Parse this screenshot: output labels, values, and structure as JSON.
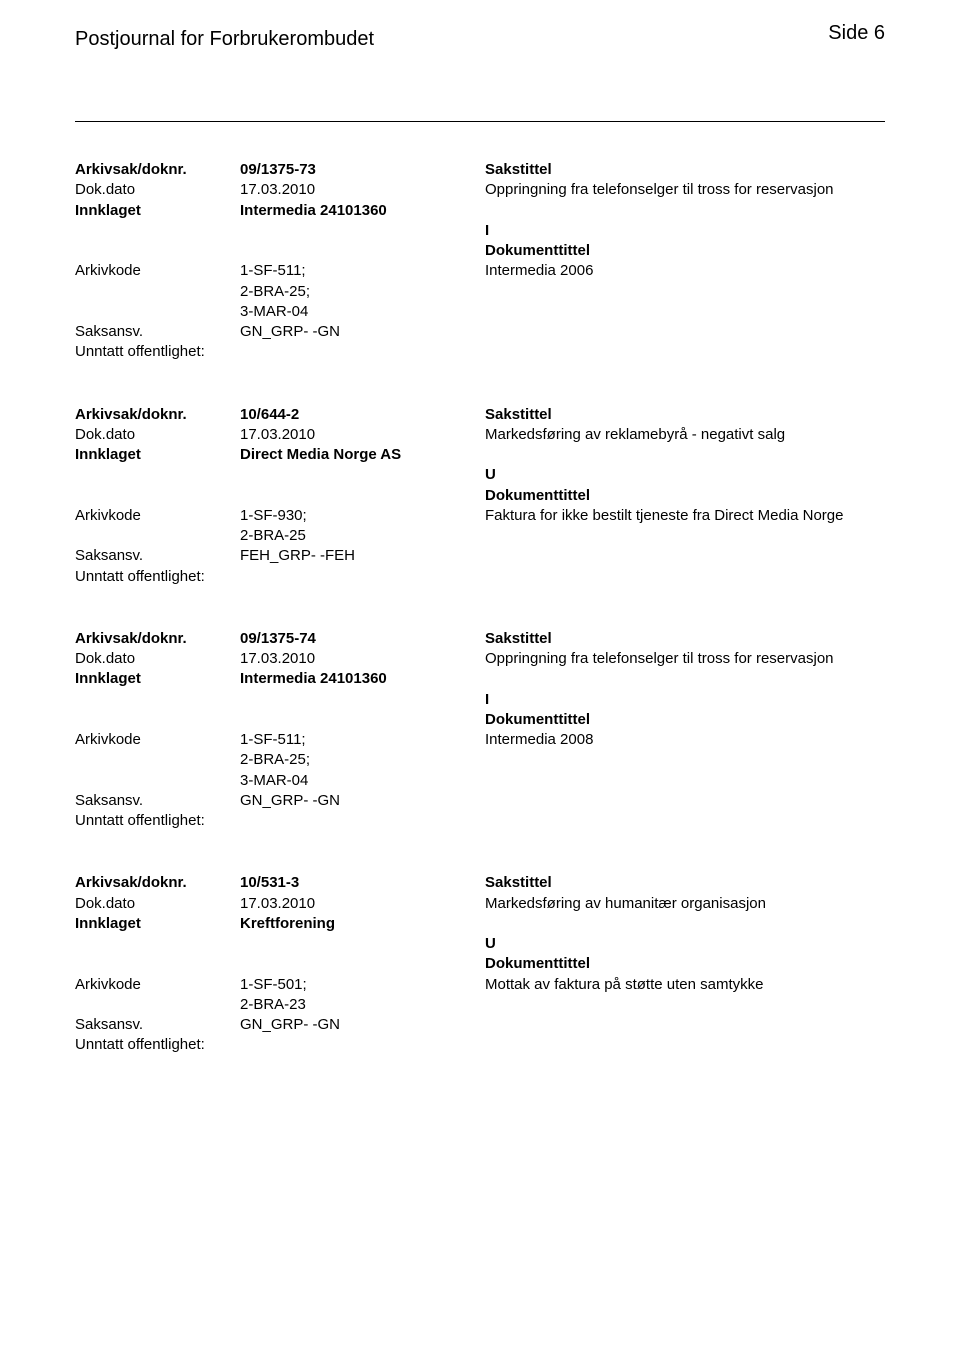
{
  "page": {
    "journal_title": "Postjournal for Forbrukerombudet",
    "page_label": "Side 6"
  },
  "labels": {
    "arkivsak": "Arkivsak/doknr.",
    "dokdato": "Dok.dato",
    "innklaget": "Innklaget",
    "arkivkode": "Arkivkode",
    "saksansv": "Saksansv.",
    "unntatt": "Unntatt offentlighet:",
    "sakstittel": "Sakstittel",
    "dokumenttittel": "Dokumenttittel"
  },
  "entries": [
    {
      "arkivsak": "09/1375-73",
      "dokdato": "17.03.2010",
      "sakstittel": "Oppringning fra telefonselger til tross for reservasjon",
      "innklaget": "Intermedia 24101360",
      "direction": "I",
      "arkivkode": "1-SF-511;\n2-BRA-25;\n3-MAR-04",
      "dokumenttittel": "Intermedia 2006",
      "saksansv": "GN_GRP- -GN"
    },
    {
      "arkivsak": "10/644-2",
      "dokdato": "17.03.2010",
      "sakstittel": "Markedsføring av reklamebyrå - negativt salg",
      "innklaget": "Direct Media Norge AS",
      "direction": "U",
      "arkivkode": "1-SF-930;\n2-BRA-25",
      "dokumenttittel": "Faktura for ikke bestilt tjeneste fra Direct Media Norge",
      "saksansv": "FEH_GRP- -FEH"
    },
    {
      "arkivsak": "09/1375-74",
      "dokdato": "17.03.2010",
      "sakstittel": "Oppringning fra telefonselger til tross for reservasjon",
      "innklaget": "Intermedia 24101360",
      "direction": "I",
      "arkivkode": "1-SF-511;\n2-BRA-25;\n3-MAR-04",
      "dokumenttittel": "Intermedia 2008",
      "saksansv": "GN_GRP- -GN"
    },
    {
      "arkivsak": "10/531-3",
      "dokdato": "17.03.2010",
      "sakstittel": "Markedsføring av humanitær organisasjon",
      "innklaget": "Kreftforening",
      "direction": "U",
      "arkivkode": "1-SF-501;\n2-BRA-23",
      "dokumenttittel": "Mottak av faktura på støtte uten samtykke",
      "saksansv": "GN_GRP- -GN"
    }
  ]
}
